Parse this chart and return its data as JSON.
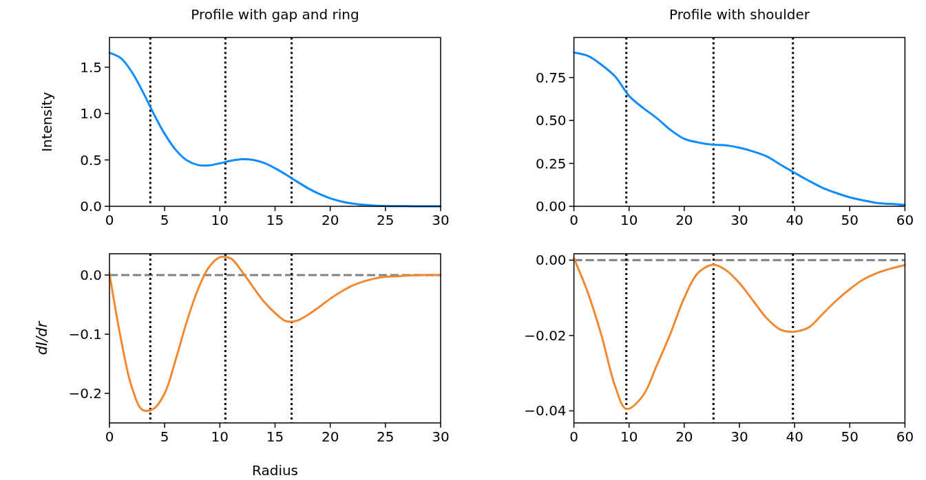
{
  "chart_data": [
    {
      "type": "line",
      "title": "Profile with gap and ring",
      "ylabel": "Intensity",
      "xlim": [
        0,
        30
      ],
      "xticks": [
        0,
        5,
        10,
        15,
        20,
        25,
        30
      ],
      "ylim": [
        0,
        1.82
      ],
      "yticks": [
        {
          "value": 0,
          "label": "0.0"
        },
        {
          "value": 0.5,
          "label": "0.5"
        },
        {
          "value": 1,
          "label": "1.0"
        },
        {
          "value": 1.5,
          "label": "1.5"
        }
      ],
      "ref_lines": [
        {
          "axis": "x",
          "value": 3.7,
          "color": "#000000",
          "line_style": "dotted"
        },
        {
          "axis": "x",
          "value": 10.5,
          "color": "#000000",
          "line_style": "dotted"
        },
        {
          "axis": "x",
          "value": 16.5,
          "color": "#000000",
          "line_style": "dotted"
        }
      ],
      "series": [
        {
          "color": "#0a8cff",
          "x": [
            0,
            1,
            2,
            3,
            4,
            5,
            6,
            7,
            8,
            9,
            10,
            11,
            12,
            13,
            14,
            15,
            16,
            17,
            18,
            19,
            20,
            21,
            22,
            23,
            24,
            25,
            26,
            27,
            28,
            29,
            30
          ],
          "values": [
            1.654,
            1.6,
            1.453,
            1.239,
            1.0,
            0.781,
            0.609,
            0.496,
            0.446,
            0.441,
            0.463,
            0.491,
            0.507,
            0.501,
            0.468,
            0.411,
            0.341,
            0.266,
            0.194,
            0.134,
            0.086,
            0.052,
            0.03,
            0.016,
            0.008,
            0.004,
            0.002,
            0.001,
            0,
            0,
            0
          ]
        }
      ]
    },
    {
      "type": "line",
      "title": "Profile with shoulder",
      "xlim": [
        0,
        60
      ],
      "xticks": [
        0,
        10,
        20,
        30,
        40,
        50,
        60
      ],
      "ylim": [
        0,
        0.983
      ],
      "yticks": [
        {
          "value": 0,
          "label": "0.00"
        },
        0.25,
        {
          "value": 0.5,
          "label": "0.50"
        },
        0.75
      ],
      "ref_lines": [
        {
          "axis": "x",
          "value": 9.5,
          "color": "#000000",
          "line_style": "dotted"
        },
        {
          "axis": "x",
          "value": 25.3,
          "color": "#000000",
          "line_style": "dotted"
        },
        {
          "axis": "x",
          "value": 39.7,
          "color": "#000000",
          "line_style": "dotted"
        }
      ],
      "series": [
        {
          "color": "#0a8cff",
          "x": [
            0,
            2.5,
            5,
            7.5,
            10,
            12.5,
            15,
            17.5,
            20,
            22.5,
            25,
            27.5,
            30,
            32.5,
            35,
            37.5,
            40,
            42.5,
            45,
            47.5,
            50,
            52.5,
            55,
            57.5,
            60
          ],
          "values": [
            0.895,
            0.876,
            0.824,
            0.755,
            0.643,
            0.574,
            0.514,
            0.445,
            0.393,
            0.372,
            0.359,
            0.355,
            0.341,
            0.319,
            0.29,
            0.241,
            0.195,
            0.15,
            0.109,
            0.078,
            0.052,
            0.034,
            0.019,
            0.014,
            0.008
          ]
        }
      ]
    },
    {
      "type": "line",
      "xlabel": "Radius",
      "ylabel": "dI/dr",
      "xlim": [
        0,
        30
      ],
      "xticks": [
        0,
        5,
        10,
        15,
        20,
        25,
        30
      ],
      "ylim": [
        -0.25,
        0.036
      ],
      "yticks": [
        {
          "value": -0.2,
          "label": "−0.2"
        },
        {
          "value": -0.1,
          "label": "−0.1"
        },
        {
          "value": 0,
          "label": "0.0"
        }
      ],
      "ref_lines": [
        {
          "axis": "y",
          "value": 0,
          "color": "#808080",
          "line_style": "dashed"
        },
        {
          "axis": "x",
          "value": 3.7,
          "color": "#000000",
          "line_style": "dotted"
        },
        {
          "axis": "x",
          "value": 10.5,
          "color": "#000000",
          "line_style": "dotted"
        },
        {
          "axis": "x",
          "value": 16.5,
          "color": "#000000",
          "line_style": "dotted"
        }
      ],
      "series": [
        {
          "color": "#f0892f",
          "x": [
            0,
            1,
            2,
            3,
            4,
            5,
            6,
            7,
            8,
            9,
            10,
            11,
            12,
            13,
            14,
            15,
            16,
            17,
            18,
            19,
            20,
            21,
            22,
            23,
            24,
            25,
            26,
            27,
            28,
            29,
            30
          ],
          "values": [
            0.003,
            -0.104,
            -0.188,
            -0.228,
            -0.226,
            -0.2,
            -0.143,
            -0.079,
            -0.025,
            0.013,
            0.03,
            0.028,
            0.006,
            -0.02,
            -0.045,
            -0.064,
            -0.078,
            -0.077,
            -0.067,
            -0.054,
            -0.04,
            -0.028,
            -0.018,
            -0.011,
            -0.006,
            -0.003,
            -0.002,
            -0.001,
            0,
            0,
            0
          ]
        }
      ]
    },
    {
      "type": "line",
      "xlim": [
        0,
        60
      ],
      "xticks": [
        0,
        10,
        20,
        30,
        40,
        50,
        60
      ],
      "ylim": [
        -0.0432,
        0.0017
      ],
      "yticks": [
        {
          "value": -0.04,
          "label": "−0.04"
        },
        {
          "value": -0.02,
          "label": "−0.02"
        },
        {
          "value": 0,
          "label": "0.00"
        }
      ],
      "ref_lines": [
        {
          "axis": "y",
          "value": 0,
          "color": "#808080",
          "line_style": "dashed"
        },
        {
          "axis": "x",
          "value": 9.5,
          "color": "#000000",
          "line_style": "dotted"
        },
        {
          "axis": "x",
          "value": 25.3,
          "color": "#000000",
          "line_style": "dotted"
        },
        {
          "axis": "x",
          "value": 39.7,
          "color": "#000000",
          "line_style": "dotted"
        }
      ],
      "series": [
        {
          "color": "#f0892f",
          "x": [
            0,
            2.5,
            5,
            7.5,
            9.5,
            12.5,
            15,
            17.5,
            20,
            22.5,
            25.3,
            27.5,
            30,
            32.5,
            35,
            37.5,
            39.7,
            42.5,
            45,
            47.5,
            50,
            52.5,
            55,
            57.5,
            60
          ],
          "values": [
            0.0005,
            -0.0085,
            -0.02,
            -0.0336,
            -0.0395,
            -0.036,
            -0.028,
            -0.0195,
            -0.01,
            -0.0034,
            -0.0012,
            -0.0026,
            -0.0061,
            -0.0108,
            -0.0155,
            -0.0185,
            -0.019,
            -0.0179,
            -0.0144,
            -0.0108,
            -0.0077,
            -0.0051,
            -0.0034,
            -0.0022,
            -0.0013
          ]
        }
      ]
    }
  ]
}
